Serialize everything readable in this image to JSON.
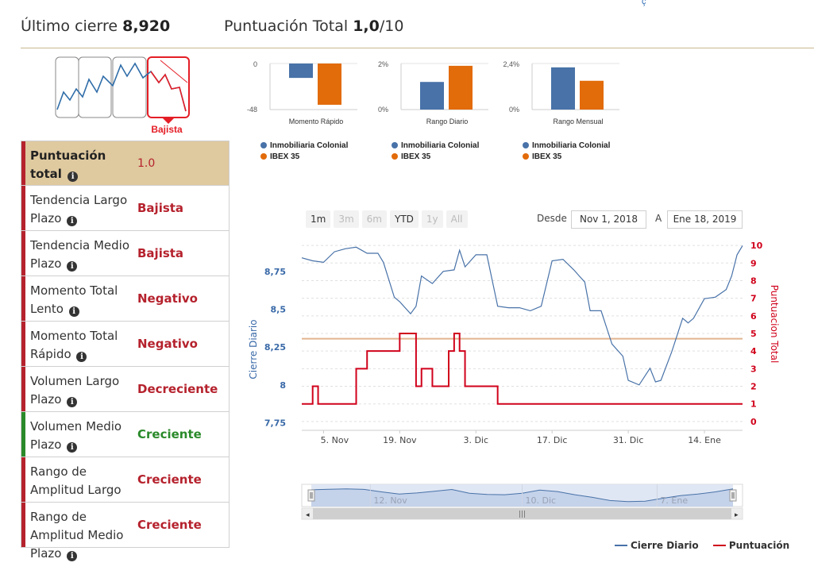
{
  "header": {
    "close_label": "Último cierre",
    "close_value": "8,920",
    "score_label": "Puntuación Total",
    "score_value": "1,0",
    "score_max": "/10"
  },
  "top_mark": "ç",
  "trend_icon": {
    "label": "Bajista",
    "accent": "#e41e26"
  },
  "score_rows": [
    {
      "label": "Puntuación total",
      "value": "1.0",
      "status": "red",
      "total": true
    },
    {
      "label": "Tendencia Largo Plazo",
      "value": "Bajista",
      "status": "red"
    },
    {
      "label": "Tendencia Medio Plazo",
      "value": "Bajista",
      "status": "red"
    },
    {
      "label": "Momento Total Lento",
      "value": "Negativo",
      "status": "red"
    },
    {
      "label": "Momento Total Rápido",
      "value": "Negativo",
      "status": "red"
    },
    {
      "label": "Volumen Largo Plazo",
      "value": "Decreciente",
      "status": "red"
    },
    {
      "label": "Volumen Medio Plazo",
      "value": "Creciente",
      "status": "green"
    },
    {
      "label": "Rango de Amplitud Largo Plazo",
      "value": "Creciente",
      "status": "red"
    },
    {
      "label": "Rango de Amplitud Medio Plazo",
      "value": "Creciente",
      "status": "red"
    }
  ],
  "colors": {
    "series_blue": "#4872a8",
    "series_orange": "#e26b0a",
    "score_red": "#b5222d",
    "green": "#2a8a2a",
    "ref_line": "#e2b58f"
  },
  "range_selector": {
    "buttons": [
      {
        "label": "1m",
        "active": true
      },
      {
        "label": "3m",
        "active": false
      },
      {
        "label": "6m",
        "active": false
      },
      {
        "label": "YTD",
        "active": true
      },
      {
        "label": "1y",
        "active": false
      },
      {
        "label": "All",
        "active": false
      }
    ],
    "from_label": "Desde",
    "from_value": "Nov 1, 2018",
    "to_label": "A",
    "to_value": "Ene 18, 2019"
  },
  "legend": {
    "close": "Cierre Diario",
    "score": "Puntuación"
  },
  "chart_data": [
    {
      "type": "bar",
      "title": "Momento Rápido",
      "categories": [
        "Momento Rápido"
      ],
      "series": [
        {
          "name": "Inmobiliaria Colonial",
          "values": [
            -15
          ]
        },
        {
          "name": "IBEX 35",
          "values": [
            -43
          ]
        }
      ],
      "ylim": [
        -48,
        0
      ],
      "ytick_labels": [
        "0",
        "-48"
      ]
    },
    {
      "type": "bar",
      "title": "Rango Diario",
      "categories": [
        "Rango Diario"
      ],
      "series": [
        {
          "name": "Inmobiliaria Colonial",
          "values": [
            1.2
          ]
        },
        {
          "name": "IBEX 35",
          "values": [
            1.9
          ]
        }
      ],
      "ylim": [
        0,
        2
      ],
      "ytick_labels": [
        "2%",
        "0%"
      ]
    },
    {
      "type": "bar",
      "title": "Rango Mensual",
      "categories": [
        "Rango Mensual"
      ],
      "series": [
        {
          "name": "Inmobiliaria Colonial",
          "values": [
            2.2
          ]
        },
        {
          "name": "IBEX 35",
          "values": [
            1.5
          ]
        }
      ],
      "ylim": [
        0,
        2.4
      ],
      "ytick_labels": [
        "2,4%",
        "0%"
      ]
    },
    {
      "type": "line",
      "title": "",
      "ylabel": "Cierre Diario",
      "y2label": "Puntuacion Total",
      "ylim": [
        7.7,
        8.98
      ],
      "y2lim": [
        -0.5,
        10.5
      ],
      "yticks": [
        7.75,
        8,
        8.25,
        8.5,
        8.75
      ],
      "ytick_labels": [
        "7,75",
        "8",
        "8,25",
        "8,5",
        "8,75"
      ],
      "y2ticks": [
        0,
        1,
        2,
        3,
        4,
        5,
        6,
        7,
        8,
        9,
        10
      ],
      "x_ticks": [
        "5. Nov",
        "19. Nov",
        "3. Dic",
        "17. Dic",
        "31. Dic",
        "14. Ene"
      ],
      "x_tick_pos": [
        4,
        18,
        32,
        46,
        60,
        74
      ],
      "reference_line": 4.7,
      "series": [
        {
          "name": "Cierre Diario",
          "axis": "left",
          "style": "line",
          "x": [
            0,
            2,
            4,
            6,
            8,
            10,
            12,
            14,
            15,
            17,
            18,
            20,
            21,
            22,
            24,
            26,
            28,
            29,
            30,
            32,
            34,
            36,
            38,
            40,
            42,
            44,
            46,
            48,
            50,
            51,
            52,
            53,
            54,
            55,
            57,
            59,
            60,
            62,
            64,
            65,
            66,
            68,
            70,
            71,
            72,
            74,
            76,
            78,
            79,
            80,
            81
          ],
          "values": [
            8.84,
            8.82,
            8.81,
            8.88,
            8.9,
            8.91,
            8.87,
            8.87,
            8.81,
            8.58,
            8.55,
            8.47,
            8.52,
            8.72,
            8.67,
            8.75,
            8.76,
            8.89,
            8.78,
            8.86,
            8.86,
            8.52,
            8.51,
            8.51,
            8.49,
            8.52,
            8.82,
            8.83,
            8.76,
            8.72,
            8.68,
            8.49,
            8.49,
            8.49,
            8.27,
            8.19,
            8.03,
            8.0,
            8.11,
            8.02,
            8.03,
            8.22,
            8.44,
            8.41,
            8.44,
            8.57,
            8.58,
            8.63,
            8.72,
            8.86,
            8.92
          ]
        },
        {
          "name": "Puntuación",
          "axis": "right",
          "style": "step",
          "x": [
            0,
            1,
            2,
            3,
            9,
            10,
            11,
            12,
            18,
            18.6,
            19,
            20,
            21,
            22,
            24,
            25,
            26,
            27,
            28,
            29,
            30,
            31,
            32,
            33,
            34,
            35,
            36,
            37,
            38,
            39,
            40,
            41,
            42,
            43,
            44,
            81
          ],
          "values": [
            1,
            1,
            2,
            1,
            1,
            3,
            3,
            4,
            5,
            5,
            5,
            5,
            2,
            3,
            2,
            2,
            2,
            4,
            5,
            4,
            2,
            2,
            2,
            2,
            2,
            2,
            1,
            1,
            1,
            1,
            1,
            1,
            1,
            1,
            1,
            1
          ]
        }
      ]
    }
  ],
  "navigator": {
    "labels": [
      "12. Nov",
      "10. Dic",
      "7. Ene"
    ],
    "values": [
      8.84,
      8.88,
      8.9,
      8.87,
      8.7,
      8.55,
      8.62,
      8.74,
      8.86,
      8.6,
      8.52,
      8.5,
      8.6,
      8.82,
      8.72,
      8.5,
      8.32,
      8.1,
      8.02,
      8.05,
      8.25,
      8.44,
      8.55,
      8.7,
      8.9
    ]
  }
}
